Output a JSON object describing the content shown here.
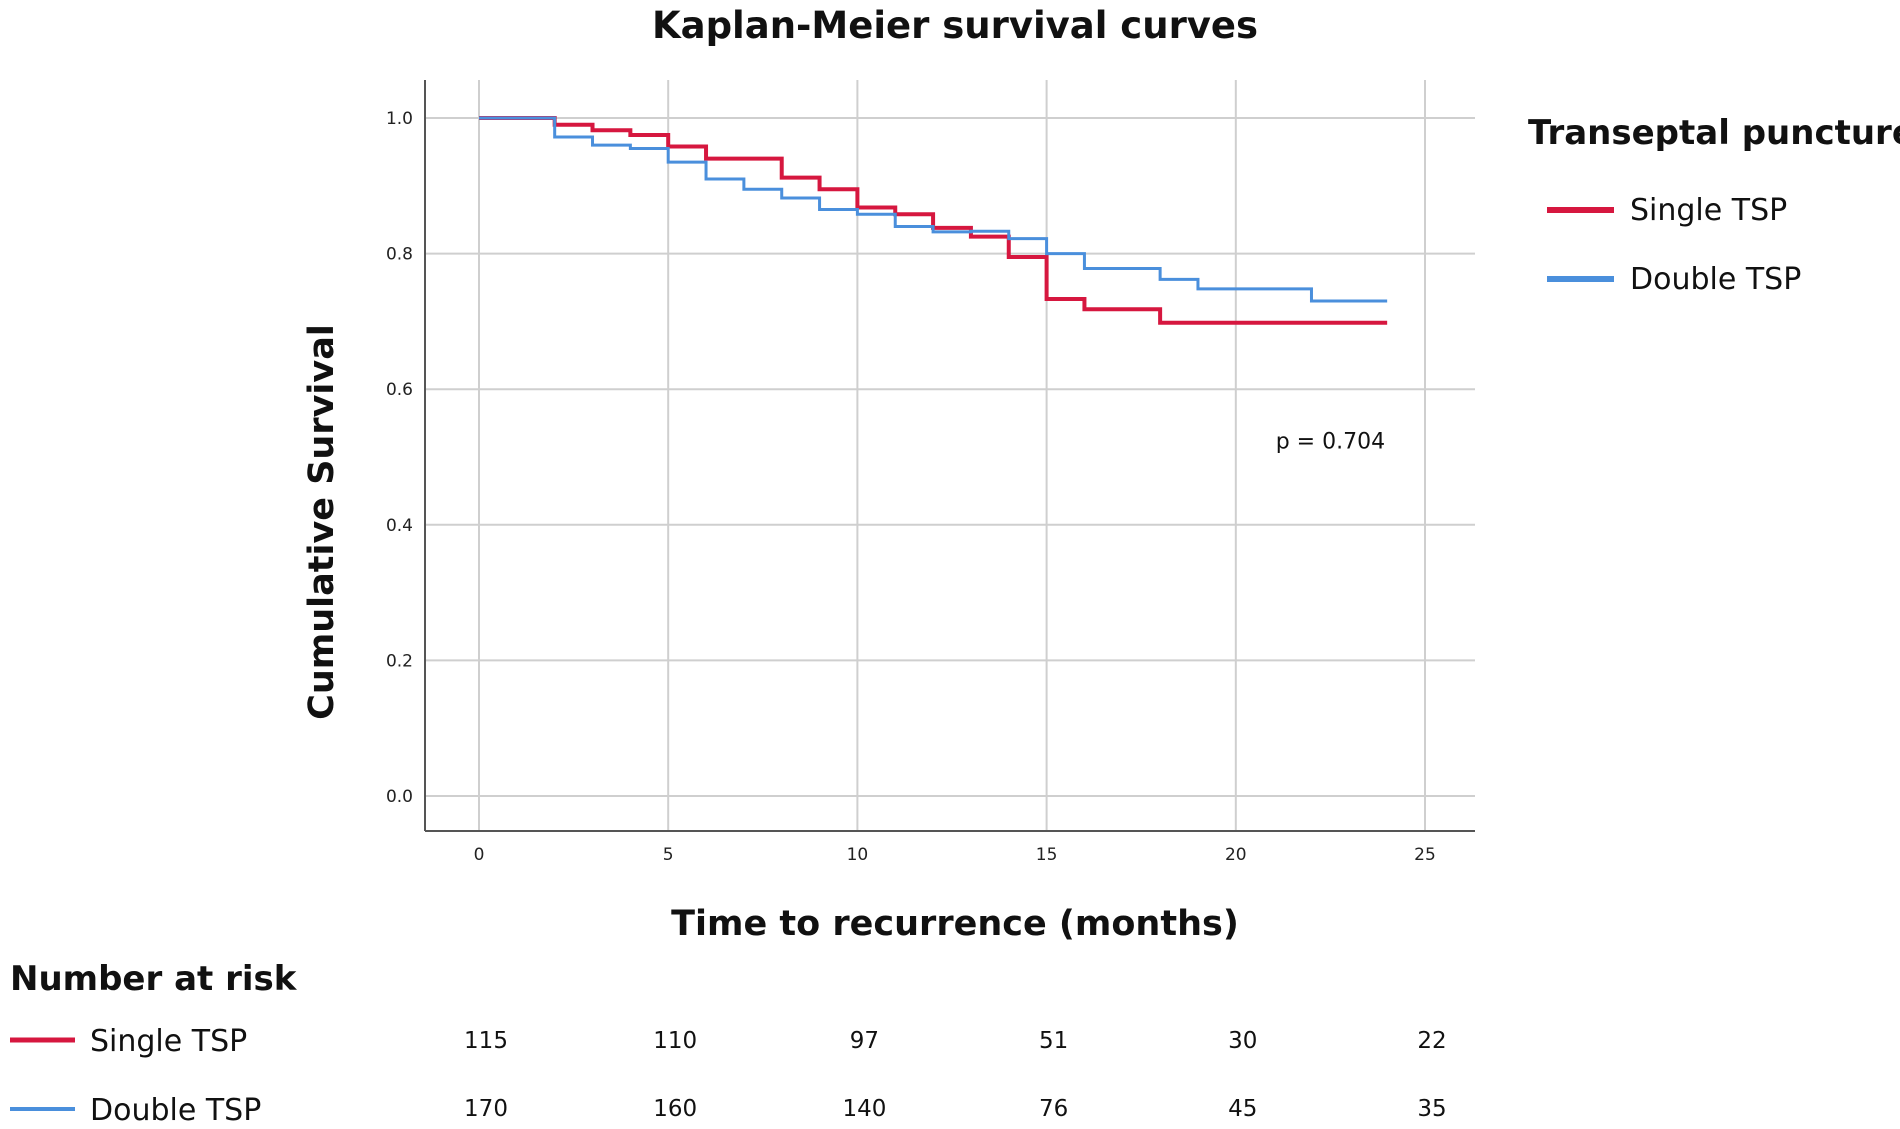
{
  "chart_data": {
    "type": "line",
    "subtype": "kaplan-meier-step",
    "title": "Kaplan-Meier survival curves",
    "xlabel": "Time to recurrence (months)",
    "ylabel": "Cumulative Survival",
    "xlim": [
      0,
      25
    ],
    "ylim": [
      0.0,
      1.0
    ],
    "x_ticks": [
      0,
      5,
      10,
      15,
      20,
      25
    ],
    "y_ticks": [
      0.0,
      0.2,
      0.4,
      0.6,
      0.8,
      1.0
    ],
    "x_tick_labels": [
      "0",
      "5",
      "10",
      "15",
      "20",
      "25"
    ],
    "y_tick_labels": [
      "0.0",
      "0.2",
      "0.4",
      "0.6",
      "0.8",
      "1.0"
    ],
    "grid": true,
    "legend": {
      "title": "Transeptal puncture",
      "position": "right"
    },
    "series": [
      {
        "name": "Single TSP",
        "color": "#d6173f",
        "steps": [
          [
            0,
            1.0
          ],
          [
            2,
            0.99
          ],
          [
            3,
            0.982
          ],
          [
            4,
            0.975
          ],
          [
            5,
            0.958
          ],
          [
            6,
            0.94
          ],
          [
            8,
            0.912
          ],
          [
            9,
            0.895
          ],
          [
            10,
            0.868
          ],
          [
            11,
            0.858
          ],
          [
            12,
            0.838
          ],
          [
            13,
            0.825
          ],
          [
            14,
            0.795
          ],
          [
            15,
            0.733
          ],
          [
            16,
            0.718
          ],
          [
            18,
            0.698
          ],
          [
            24,
            0.698
          ]
        ]
      },
      {
        "name": "Double TSP",
        "color": "#4a8fdc",
        "steps": [
          [
            0,
            1.0
          ],
          [
            2,
            0.972
          ],
          [
            3,
            0.96
          ],
          [
            4,
            0.955
          ],
          [
            5,
            0.935
          ],
          [
            6,
            0.91
          ],
          [
            7,
            0.895
          ],
          [
            8,
            0.882
          ],
          [
            9,
            0.865
          ],
          [
            10,
            0.858
          ],
          [
            11,
            0.84
          ],
          [
            12,
            0.832
          ],
          [
            13,
            0.833
          ],
          [
            14,
            0.822
          ],
          [
            15,
            0.8
          ],
          [
            16,
            0.778
          ],
          [
            18,
            0.762
          ],
          [
            19,
            0.748
          ],
          [
            22,
            0.73
          ],
          [
            24,
            0.73
          ]
        ]
      }
    ],
    "annotations": [
      {
        "text": "p = 0.704",
        "x": 22.5,
        "y": 0.524
      }
    ],
    "number_at_risk": {
      "heading": "Number at risk",
      "time_points": [
        0,
        5,
        10,
        15,
        20,
        25
      ],
      "rows": [
        {
          "name": "Single TSP",
          "color": "#d6173f",
          "values": [
            "115",
            "110",
            "97",
            "51",
            "30",
            "22"
          ]
        },
        {
          "name": "Double TSP",
          "color": "#4a8fdc",
          "values": [
            "170",
            "160",
            "140",
            "76",
            "45",
            "35"
          ]
        }
      ]
    }
  }
}
